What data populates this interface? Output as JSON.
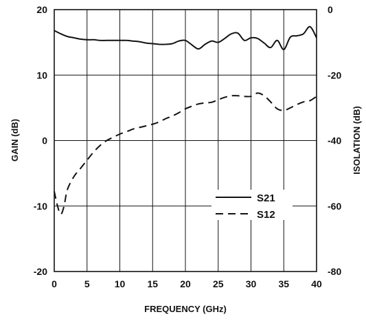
{
  "chart_data": {
    "type": "line",
    "xlabel": "FREQUENCY (GHz)",
    "ylabel": "GAIN (dB)",
    "y2label": "ISOLATION (dB)",
    "xlim": [
      0,
      40
    ],
    "ylim": [
      -20,
      20
    ],
    "y2lim": [
      -80,
      0
    ],
    "xticks": [
      "0",
      "5",
      "10",
      "15",
      "20",
      "25",
      "30",
      "35",
      "40"
    ],
    "yticks": [
      "20",
      "10",
      "0",
      "-10",
      "-20"
    ],
    "y2ticks": [
      "0",
      "-20",
      "-40",
      "-60",
      "-80"
    ],
    "grid": true,
    "legend_position": "lower-right",
    "series": [
      {
        "name": "S21",
        "axis": "left",
        "style": "solid",
        "x": [
          0,
          1,
          2,
          3,
          4,
          5,
          6,
          7,
          8,
          9,
          10,
          11,
          12,
          13,
          14,
          15,
          16,
          17,
          18,
          19,
          20,
          21,
          22,
          23,
          24,
          25,
          26,
          27,
          28,
          29,
          30,
          31,
          32,
          33,
          34,
          35,
          36,
          37,
          38,
          39,
          40
        ],
        "values": [
          16.8,
          16.3,
          15.9,
          15.7,
          15.5,
          15.4,
          15.4,
          15.3,
          15.3,
          15.3,
          15.3,
          15.3,
          15.2,
          15.1,
          14.9,
          14.8,
          14.7,
          14.7,
          14.8,
          15.2,
          15.3,
          14.6,
          14.0,
          14.7,
          15.2,
          15.0,
          15.6,
          16.3,
          16.4,
          15.3,
          15.7,
          15.6,
          14.9,
          14.2,
          15.3,
          13.9,
          15.8,
          16.0,
          16.3,
          17.4,
          15.7
        ]
      },
      {
        "name": "S12",
        "axis": "right",
        "style": "dashed",
        "x": [
          0,
          0.5,
          1,
          1.5,
          2,
          3,
          4,
          5,
          6,
          7,
          8,
          9,
          10,
          11,
          12,
          13,
          14,
          15,
          16,
          17,
          18,
          19,
          20,
          21,
          22,
          23,
          24,
          25,
          26,
          27,
          28,
          29,
          30,
          31,
          32,
          33,
          34,
          35,
          36,
          37,
          38,
          39,
          40
        ],
        "values": [
          -55.5,
          -60.0,
          -62.5,
          -60.0,
          -55.0,
          -51.0,
          -48.5,
          -46.0,
          -43.5,
          -41.5,
          -40.0,
          -39.0,
          -38.0,
          -37.3,
          -36.5,
          -36.0,
          -35.5,
          -35.0,
          -34.3,
          -33.3,
          -32.5,
          -31.5,
          -30.3,
          -29.5,
          -28.8,
          -28.5,
          -28.3,
          -27.5,
          -26.8,
          -26.3,
          -26.3,
          -26.5,
          -26.5,
          -25.5,
          -26.3,
          -28.2,
          -30.3,
          -30.8,
          -30.0,
          -29.0,
          -28.2,
          -27.8,
          -26.5
        ]
      }
    ]
  }
}
